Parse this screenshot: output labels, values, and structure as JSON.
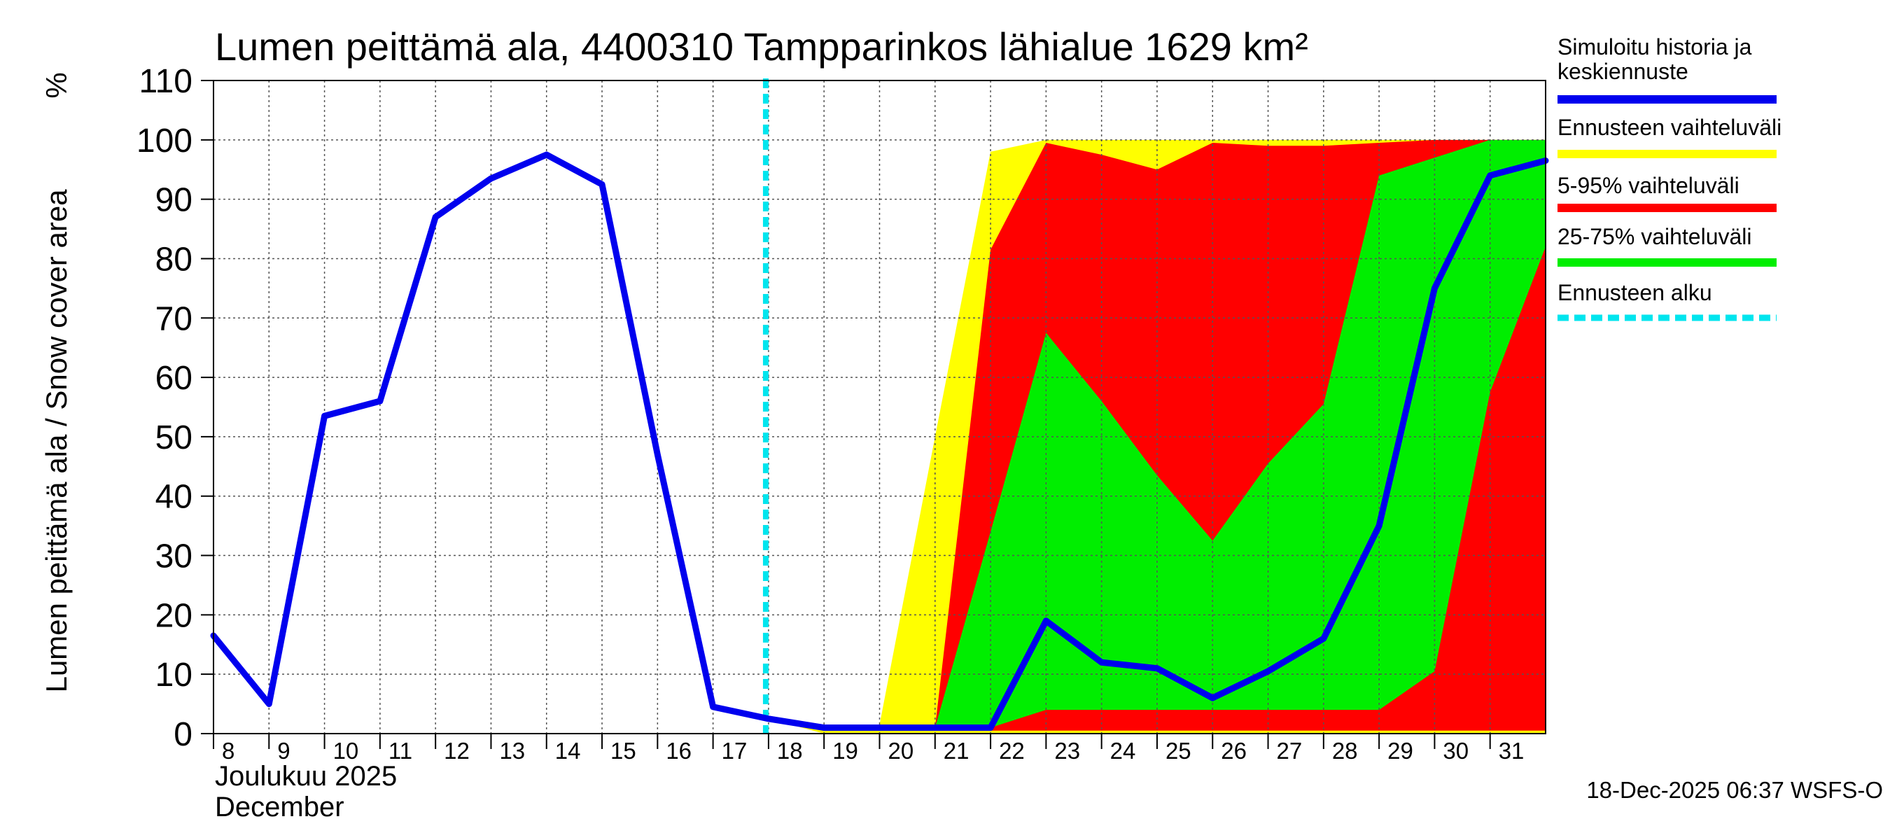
{
  "chart_data": {
    "type": "area",
    "title": "Lumen peittämä ala, 4400310 Tampparinkos lähialue 1629 km²",
    "ylabel": "Lumen peittämä ala / Snow cover area",
    "yunit": "%",
    "xlabel_line1": "Joulukuu  2025",
    "xlabel_line2": "December",
    "footer": "18-Dec-2025 06:37 WSFS-O",
    "ylim": [
      0,
      110
    ],
    "xlim": [
      8,
      32
    ],
    "grid": true,
    "yticks": [
      0,
      10,
      20,
      30,
      40,
      50,
      60,
      70,
      80,
      90,
      100,
      110
    ],
    "xticks": [
      8,
      9,
      10,
      11,
      12,
      13,
      14,
      15,
      16,
      17,
      18,
      19,
      20,
      21,
      22,
      23,
      24,
      25,
      26,
      27,
      28,
      29,
      30,
      31
    ],
    "forecast_start": 17.95,
    "colors": {
      "history": "#0000ee",
      "full_range": "#ffff00",
      "range_5_95": "#ff0000",
      "range_25_75": "#00ee00",
      "forecast_start": "#00e5ee"
    },
    "legend": [
      {
        "label": "Simuloitu historia ja keskiennuste",
        "color": "#0000ee",
        "style": "solid"
      },
      {
        "label": "Ennusteen vaihteluväli",
        "color": "#ffff00",
        "style": "solid"
      },
      {
        "label": "5-95% vaihteluväli",
        "color": "#ff0000",
        "style": "solid"
      },
      {
        "label": "25-75% vaihteluväli",
        "color": "#00ee00",
        "style": "solid"
      },
      {
        "label": "Ennusteen alku",
        "color": "#00e5ee",
        "style": "dashed"
      }
    ],
    "series": [
      {
        "name": "Simuloitu historia ja keskiennuste",
        "x": [
          8,
          9,
          10,
          11,
          12,
          13,
          14,
          15,
          16,
          17,
          18,
          19,
          20,
          21,
          22,
          23,
          24,
          25,
          26,
          27,
          28,
          29,
          30,
          31,
          32
        ],
        "values": [
          16.5,
          5,
          53.5,
          56,
          87,
          93.5,
          97.5,
          92.5,
          47,
          4.5,
          2.5,
          1,
          1,
          1,
          1,
          19,
          12,
          11,
          6,
          10.5,
          16,
          35,
          75,
          94,
          96.5
        ]
      }
    ],
    "bands": [
      {
        "name": "Ennusteen vaihteluväli",
        "x": [
          18,
          19,
          20,
          21,
          22,
          23,
          24,
          25,
          26,
          27,
          28,
          29,
          30,
          31,
          32
        ],
        "lower": [
          2.5,
          0,
          0,
          0,
          0,
          0,
          0,
          0,
          0,
          0,
          0,
          0,
          0,
          0,
          0
        ],
        "upper": [
          3,
          1.5,
          1.5,
          50,
          98,
          100,
          100,
          100,
          100,
          100,
          100,
          100,
          100,
          100,
          100
        ]
      },
      {
        "name": "5-95% vaihteluväli",
        "x": [
          18,
          19,
          20,
          21,
          22,
          23,
          24,
          25,
          26,
          27,
          28,
          29,
          30,
          31,
          32
        ],
        "lower": [
          2.5,
          0.5,
          0.5,
          0.5,
          0.5,
          0.5,
          0.5,
          0.5,
          0.5,
          0.5,
          0.5,
          0.5,
          0.5,
          0.5,
          0.5
        ],
        "upper": [
          3,
          1,
          1,
          1,
          81.5,
          99.5,
          97.5,
          95,
          99.5,
          99,
          99,
          99.5,
          100,
          100,
          100
        ]
      },
      {
        "name": "25-75% vaihteluväli",
        "x": [
          18,
          19,
          20,
          21,
          22,
          23,
          24,
          25,
          26,
          27,
          28,
          29,
          30,
          31,
          32
        ],
        "lower": [
          2.5,
          1,
          1,
          1,
          1,
          4,
          4,
          4,
          4,
          4,
          4,
          4,
          10.5,
          57.5,
          82
        ],
        "upper": [
          2.5,
          1,
          1,
          1,
          34,
          67.5,
          56,
          43.5,
          32.5,
          45.5,
          55.5,
          94,
          97,
          100,
          100
        ]
      }
    ]
  }
}
